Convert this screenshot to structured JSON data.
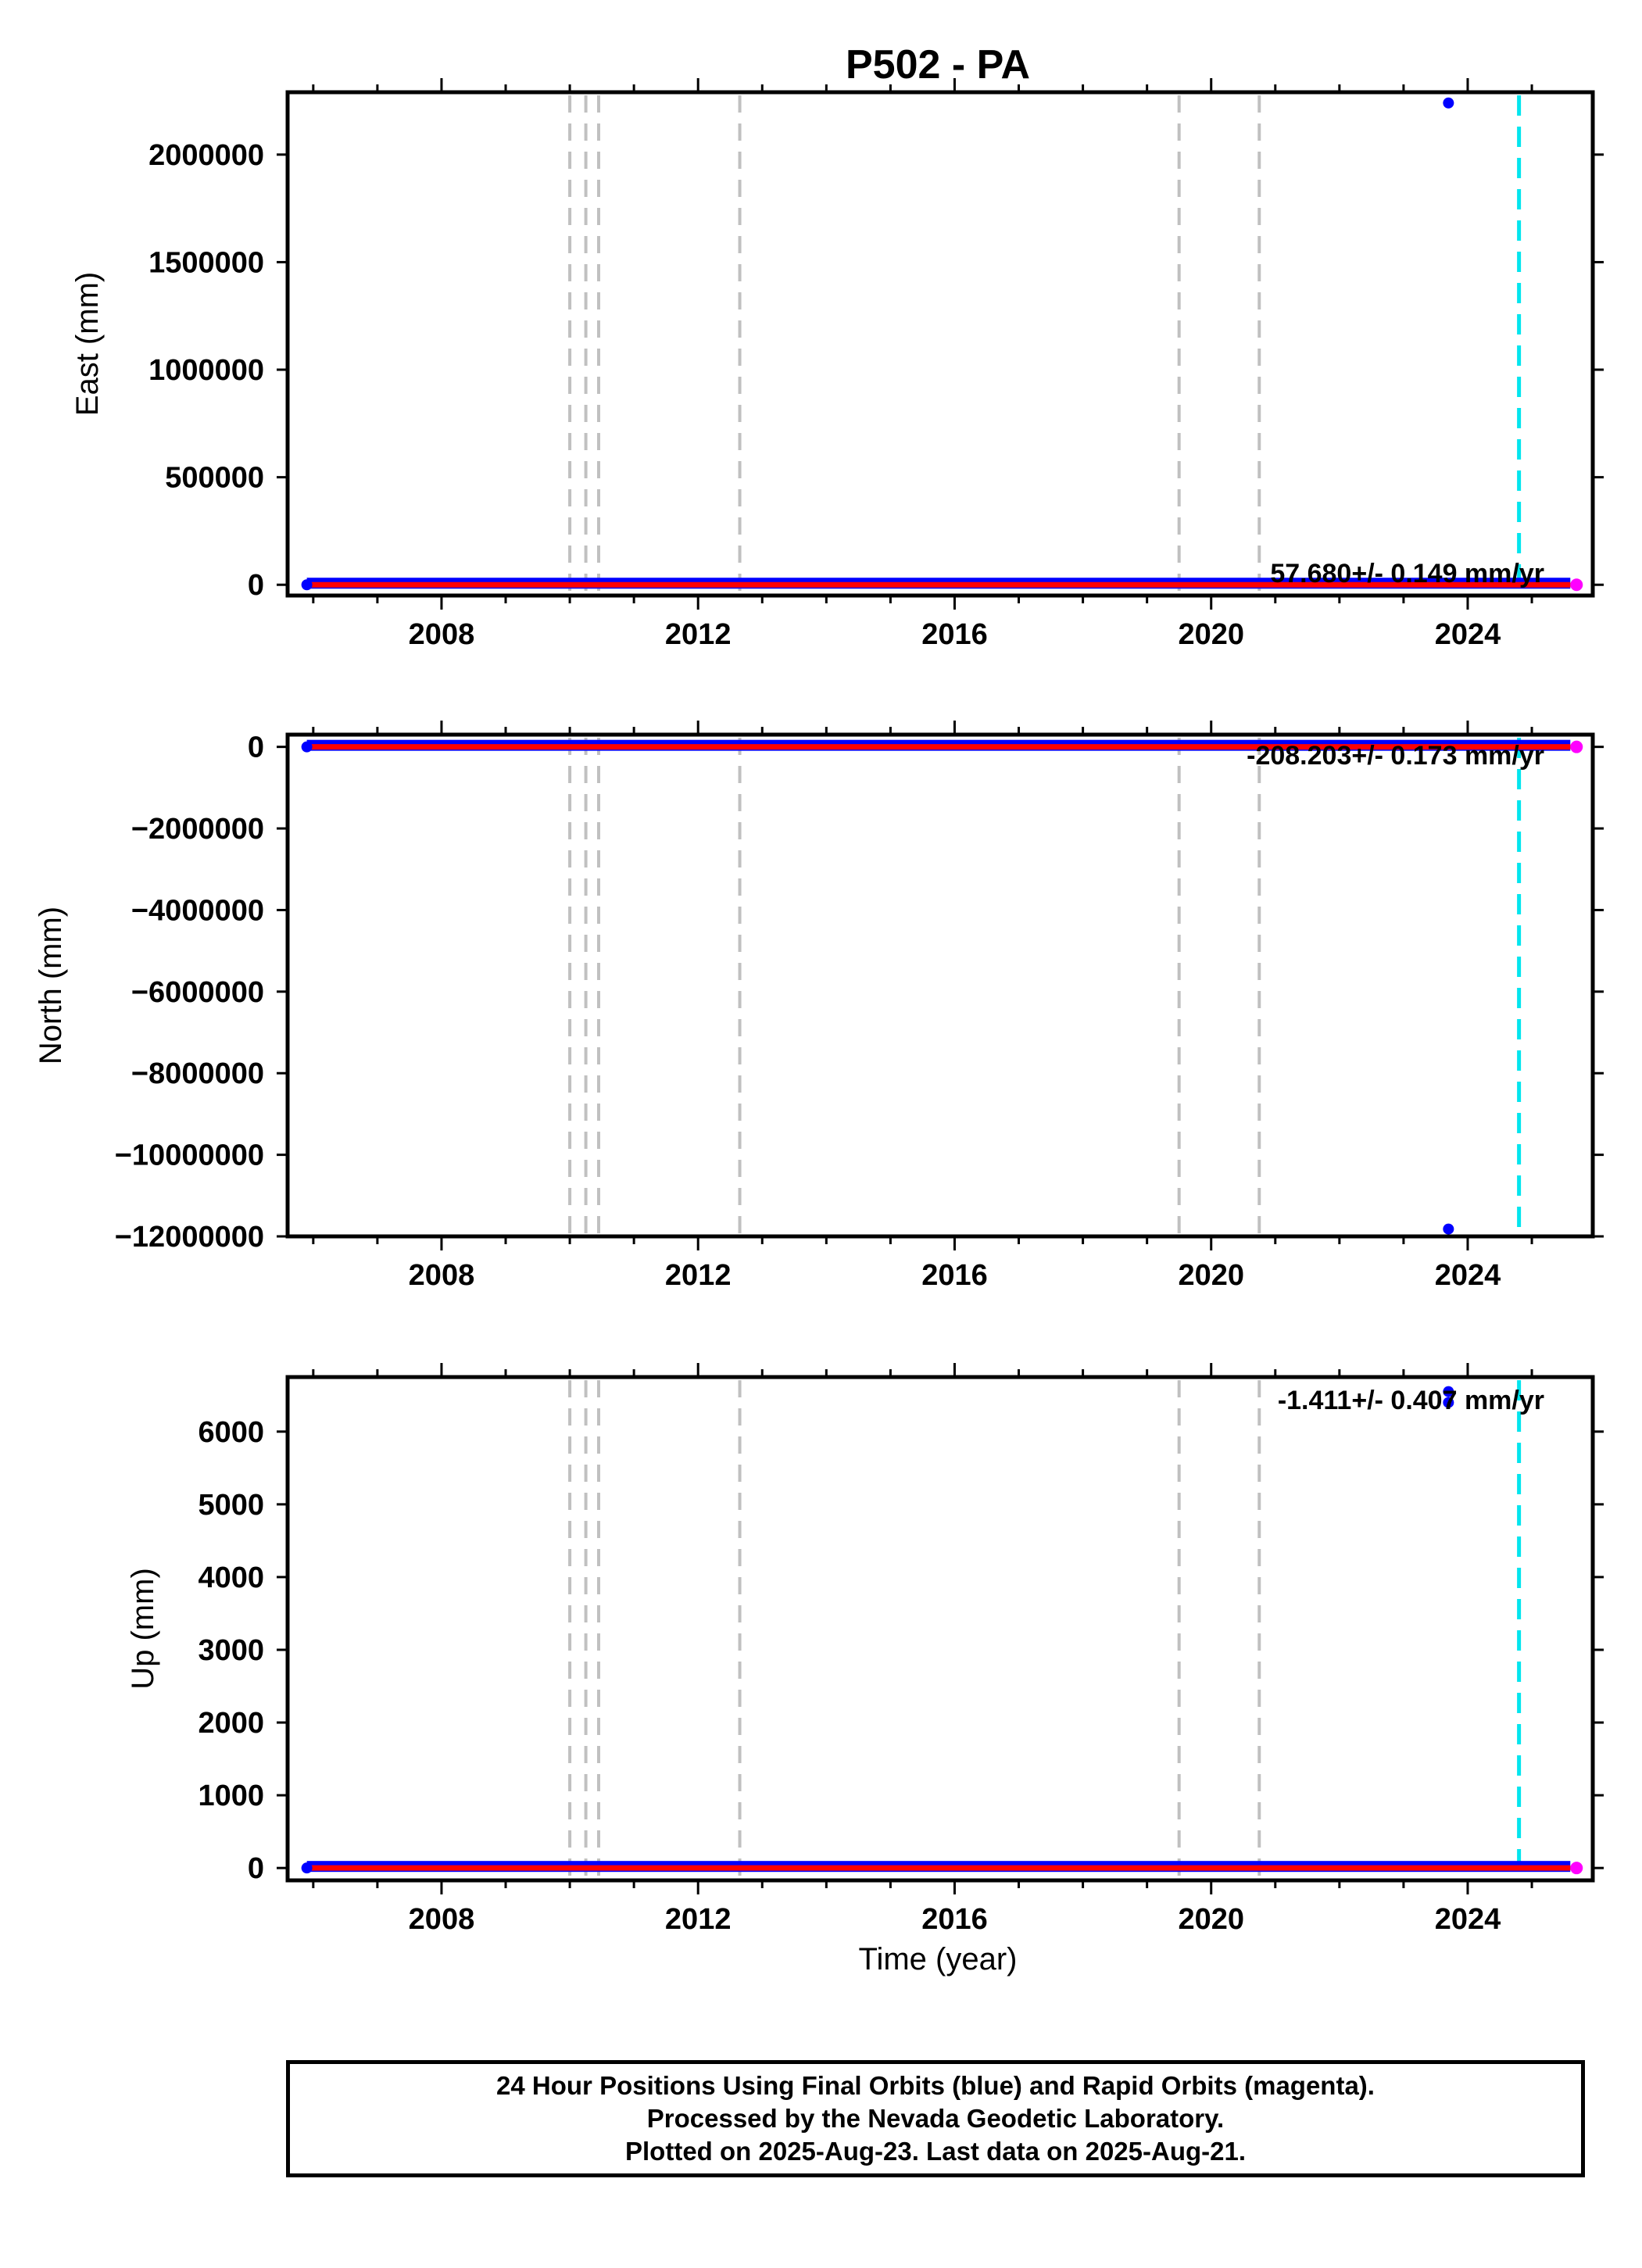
{
  "figure": {
    "title": "P502 - PA",
    "xlabel": "Time (year)",
    "colors": {
      "final_orbits": "#0000ff",
      "rapid_orbits": "#ff00ff",
      "trend_line": "#ff0000",
      "event_lines": "#c0c0c0",
      "equipment_change_line": "#00e5ee"
    }
  },
  "footer": {
    "line1": "24 Hour Positions Using Final Orbits (blue) and Rapid Orbits (magenta).",
    "line2": "Processed by the Nevada Geodetic Laboratory.",
    "line3": "Plotted on 2025-Aug-23. Last data on 2025-Aug-21."
  },
  "chart_data": [
    {
      "type": "scatter",
      "panel": "east",
      "ylabel": "East (mm)",
      "rate_text": "57.680+/- 0.149 mm/yr",
      "xlim": [
        2005.6,
        2025.95
      ],
      "ylim": [
        -50000,
        2290000
      ],
      "xticks": [
        2008,
        2012,
        2016,
        2020,
        2024
      ],
      "yticks": [
        0,
        500000,
        1000000,
        1500000,
        2000000
      ],
      "event_lines_x": [
        2010.0,
        2010.25,
        2010.45,
        2012.65,
        2019.5,
        2020.75
      ],
      "equipment_line_x": 2024.8,
      "series_range": {
        "x": [
          2005.9,
          2025.6
        ],
        "y": [
          0,
          0
        ]
      },
      "outliers": [
        {
          "x": 2023.7,
          "y": 2240000
        }
      ]
    },
    {
      "type": "scatter",
      "panel": "north",
      "ylabel": "North (mm)",
      "rate_text": "-208.203+/- 0.173 mm/yr",
      "xlim": [
        2005.6,
        2025.95
      ],
      "ylim": [
        -12000000,
        300000
      ],
      "xticks": [
        2008,
        2012,
        2016,
        2020,
        2024
      ],
      "yticks": [
        0,
        -2000000,
        -4000000,
        -6000000,
        -8000000,
        -10000000,
        -12000000
      ],
      "ytick_labels": [
        "0",
        "−2000000",
        "−4000000",
        "−6000000",
        "−8000000",
        "−10000000",
        "−12000000"
      ],
      "event_lines_x": [
        2010.0,
        2010.25,
        2010.45,
        2012.65,
        2019.5,
        2020.75
      ],
      "equipment_line_x": 2024.8,
      "series_range": {
        "x": [
          2005.9,
          2025.6
        ],
        "y": [
          0,
          0
        ]
      },
      "outliers": [
        {
          "x": 2023.7,
          "y": -11820000
        }
      ]
    },
    {
      "type": "scatter",
      "panel": "up",
      "ylabel": "Up (mm)",
      "rate_text": "-1.411+/- 0.407 mm/yr",
      "xlim": [
        2005.6,
        2025.95
      ],
      "ylim": [
        -170,
        6750
      ],
      "xticks": [
        2008,
        2012,
        2016,
        2020,
        2024
      ],
      "yticks": [
        0,
        1000,
        2000,
        3000,
        4000,
        5000,
        6000
      ],
      "event_lines_x": [
        2010.0,
        2010.25,
        2010.45,
        2012.65,
        2019.5,
        2020.75
      ],
      "equipment_line_x": 2024.8,
      "series_range": {
        "x": [
          2005.9,
          2025.6
        ],
        "y": [
          0,
          0
        ]
      },
      "outliers": [
        {
          "x": 2023.7,
          "y": 6550
        },
        {
          "x": 2023.7,
          "y": 6400
        }
      ]
    }
  ]
}
